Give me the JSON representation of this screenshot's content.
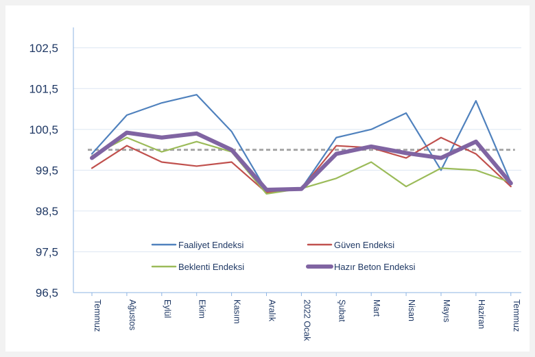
{
  "chart_data": {
    "type": "line",
    "title": "",
    "xlabel": "",
    "ylabel": "",
    "ylim": [
      96.5,
      103.0
    ],
    "yticks": [
      "96,5",
      "97,5",
      "98,5",
      "99,5",
      "100,5",
      "101,5",
      "102,5"
    ],
    "grid": true,
    "legend_position": "bottom-center",
    "categories": [
      "Temmuz",
      "Ağustos",
      "Eylül",
      "Ekim",
      "Kasım",
      "Aralık",
      "2022 Ocak",
      "Şubat",
      "Mart",
      "Nisan",
      "Mayıs",
      "Haziran",
      "Temmuz"
    ],
    "reference_line": {
      "value": 100.0,
      "color": "#a6a6a6",
      "style": "dashed"
    },
    "series": [
      {
        "name": "Faaliyet Endeksi",
        "color": "#4f81bd",
        "width": 2.2,
        "values": [
          99.9,
          100.85,
          101.15,
          101.35,
          100.45,
          99.0,
          99.05,
          100.3,
          100.5,
          100.9,
          99.5,
          101.2,
          99.2
        ]
      },
      {
        "name": "Güven Endeksi",
        "color": "#c0504d",
        "width": 2.2,
        "values": [
          99.55,
          100.1,
          99.7,
          99.6,
          99.7,
          98.95,
          99.05,
          100.1,
          100.05,
          99.8,
          100.3,
          99.9,
          99.1
        ]
      },
      {
        "name": "Beklenti Endeksi",
        "color": "#9bbb59",
        "width": 2.2,
        "values": [
          99.85,
          100.3,
          99.95,
          100.2,
          99.95,
          98.92,
          99.05,
          99.3,
          99.7,
          99.1,
          99.55,
          99.5,
          99.2
        ]
      },
      {
        "name": "Hazır Beton Endeksi",
        "color": "#8064a2",
        "width": 6,
        "values": [
          99.8,
          100.42,
          100.3,
          100.4,
          100.0,
          99.02,
          99.04,
          99.9,
          100.08,
          99.92,
          99.8,
          100.2,
          99.18
        ]
      }
    ]
  }
}
